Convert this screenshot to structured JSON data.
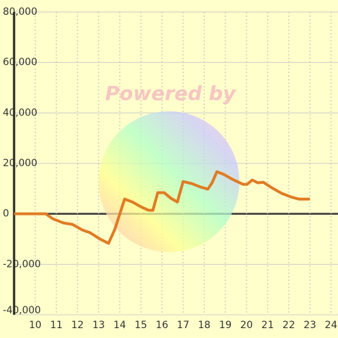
{
  "chart_data": {
    "type": "line",
    "watermark": "Powered by",
    "x": [
      9.0,
      10.5,
      10.83,
      11.33,
      11.77,
      12.23,
      12.6,
      13.07,
      13.47,
      13.77,
      14.23,
      14.6,
      15.0,
      15.37,
      15.57,
      15.8,
      16.1,
      16.43,
      16.73,
      17.0,
      17.4,
      17.83,
      18.17,
      18.37,
      18.6,
      18.93,
      19.33,
      19.83,
      20.03,
      20.27,
      20.53,
      20.8,
      21.2,
      21.67,
      22.1,
      22.47,
      23.0
    ],
    "series": [
      {
        "color": "#e07b24",
        "values": [
          0,
          0,
          -1950,
          -3600,
          -4200,
          -6400,
          -7500,
          -10000,
          -11700,
          -6100,
          5850,
          4700,
          2800,
          1400,
          1400,
          8400,
          8400,
          6100,
          4700,
          12800,
          12000,
          10600,
          9800,
          12300,
          16700,
          15600,
          13700,
          11700,
          11700,
          13400,
          12300,
          12500,
          10300,
          8100,
          6700,
          5850,
          5850
        ]
      }
    ],
    "xlim": [
      9,
      24.33
    ],
    "xticks": [
      10,
      11,
      12,
      13,
      14,
      15,
      16,
      17,
      18,
      19,
      20,
      21,
      22,
      23,
      24
    ],
    "ylim": [
      -40000,
      80000
    ],
    "yticks": [
      {
        "value": -40000,
        "label": "-40,000"
      },
      {
        "value": -20000,
        "label": "-20,000"
      },
      0,
      {
        "value": 20000,
        "label": "20,000"
      },
      {
        "value": 40000,
        "label": "40,000"
      },
      {
        "value": 60000,
        "label": "60,000"
      },
      {
        "value": 80000,
        "label": "80,000"
      }
    ],
    "grid": true
  }
}
